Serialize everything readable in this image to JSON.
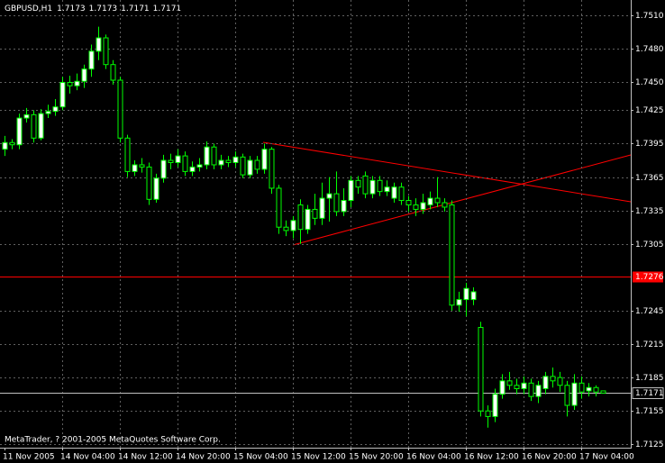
{
  "chart_data": {
    "type": "candlestick",
    "symbol": "GBPUSD,H1",
    "footer": "MetaTrader, ? 2001-2005 MetaQuotes Software Corp.",
    "categories": [
      "11 Nov 2005",
      null,
      null,
      null,
      null,
      null,
      null,
      null,
      "14 Nov 04:00",
      null,
      null,
      null,
      null,
      null,
      null,
      null,
      "14 Nov 12:00",
      null,
      null,
      null,
      null,
      null,
      null,
      null,
      "14 Nov 20:00",
      null,
      null,
      null,
      null,
      null,
      null,
      null,
      "15 Nov 04:00",
      null,
      null,
      null,
      null,
      null,
      null,
      null,
      "15 Nov 12:00",
      null,
      null,
      null,
      null,
      null,
      null,
      null,
      "15 Nov 20:00",
      null,
      null,
      null,
      null,
      null,
      null,
      null,
      "16 Nov 04:00",
      null,
      null,
      null,
      null,
      null,
      null,
      null,
      "16 Nov 12:00",
      null,
      null,
      null,
      null,
      null,
      null,
      null,
      "16 Nov 20:00",
      null,
      null,
      null,
      null,
      null,
      null,
      null,
      "17 Nov 04:00",
      null,
      null,
      null
    ],
    "open": [
      1.739,
      1.7396,
      1.7394,
      1.7418,
      1.7421,
      1.74,
      1.7422,
      1.7424,
      1.7428,
      1.745,
      1.7447,
      1.7451,
      1.7462,
      1.7478,
      1.749,
      1.7466,
      1.7452,
      1.74,
      1.737,
      1.7376,
      1.7374,
      1.7345,
      1.7364,
      1.738,
      1.7378,
      1.7384,
      1.737,
      1.7374,
      1.7376,
      1.7392,
      1.7376,
      1.738,
      1.7378,
      1.7383,
      1.7367,
      1.738,
      1.7372,
      1.739,
      1.7355,
      1.732,
      1.7317,
      1.734,
      1.7318,
      1.7336,
      1.7328,
      1.7346,
      1.735,
      1.7334,
      1.7344,
      1.7362,
      1.7366,
      1.735,
      1.7362,
      1.7352,
      1.7346,
      1.7356,
      1.7344,
      1.734,
      1.7336,
      1.734,
      1.7346,
      1.7342,
      1.734,
      1.725,
      1.7255,
      1.7255,
      1.723,
      1.7155,
      1.715,
      1.717,
      1.7182,
      1.7178,
      1.7175,
      1.718,
      1.7168,
      1.7175,
      1.7186,
      1.7185,
      1.7178,
      1.716,
      1.718,
      1.7173,
      1.7176,
      1.7173
    ],
    "high": [
      1.7402,
      1.7399,
      1.7422,
      1.7427,
      1.7425,
      1.7426,
      1.743,
      1.7435,
      1.7455,
      1.7456,
      1.7458,
      1.7466,
      1.7484,
      1.75,
      1.7493,
      1.747,
      1.7455,
      1.7403,
      1.738,
      1.7382,
      1.7378,
      1.7368,
      1.7385,
      1.7386,
      1.739,
      1.7388,
      1.7379,
      1.7382,
      1.7397,
      1.7395,
      1.7385,
      1.7384,
      1.7388,
      1.7386,
      1.7384,
      1.7384,
      1.7395,
      1.7392,
      1.7358,
      1.7326,
      1.733,
      1.7345,
      1.734,
      1.735,
      1.736,
      1.7365,
      1.737,
      1.7355,
      1.7366,
      1.7366,
      1.737,
      1.7366,
      1.7366,
      1.7362,
      1.736,
      1.736,
      1.7348,
      1.7346,
      1.735,
      1.7352,
      1.7365,
      1.7346,
      1.7344,
      1.7262,
      1.727,
      1.7266,
      1.7235,
      1.716,
      1.7175,
      1.7188,
      1.719,
      1.7184,
      1.7186,
      1.7184,
      1.7182,
      1.719,
      1.7194,
      1.719,
      1.7182,
      1.7188,
      1.7186,
      1.718,
      1.7178,
      1.7173
    ],
    "low": [
      1.7384,
      1.739,
      1.739,
      1.7414,
      1.7396,
      1.7398,
      1.7418,
      1.742,
      1.7425,
      1.744,
      1.7443,
      1.7445,
      1.7455,
      1.747,
      1.7462,
      1.7448,
      1.7396,
      1.7365,
      1.7366,
      1.7369,
      1.734,
      1.7342,
      1.736,
      1.7372,
      1.7374,
      1.7366,
      1.7366,
      1.737,
      1.7372,
      1.7372,
      1.7372,
      1.7374,
      1.7374,
      1.7364,
      1.7364,
      1.7368,
      1.7368,
      1.735,
      1.7314,
      1.7312,
      1.731,
      1.7305,
      1.7314,
      1.7322,
      1.7322,
      1.7325,
      1.733,
      1.733,
      1.7338,
      1.735,
      1.7346,
      1.7346,
      1.7348,
      1.7348,
      1.7342,
      1.734,
      1.7334,
      1.733,
      1.7332,
      1.7336,
      1.7338,
      1.7334,
      1.7245,
      1.7244,
      1.724,
      1.725,
      1.715,
      1.714,
      1.7145,
      1.7166,
      1.7174,
      1.717,
      1.717,
      1.7164,
      1.7162,
      1.717,
      1.7176,
      1.7172,
      1.715,
      1.7156,
      1.7166,
      1.7168,
      1.7168,
      1.7171
    ],
    "close": [
      1.7396,
      1.7394,
      1.7418,
      1.7421,
      1.74,
      1.7422,
      1.7424,
      1.7428,
      1.745,
      1.7447,
      1.7451,
      1.7462,
      1.7478,
      1.749,
      1.7466,
      1.7452,
      1.74,
      1.737,
      1.7376,
      1.7374,
      1.7345,
      1.7364,
      1.738,
      1.7378,
      1.7384,
      1.737,
      1.7374,
      1.7376,
      1.7392,
      1.7376,
      1.738,
      1.7378,
      1.7383,
      1.7367,
      1.738,
      1.7372,
      1.739,
      1.7355,
      1.732,
      1.7317,
      1.7326,
      1.7318,
      1.7336,
      1.7328,
      1.7346,
      1.735,
      1.7334,
      1.7344,
      1.7362,
      1.7356,
      1.735,
      1.7362,
      1.7352,
      1.7356,
      1.7356,
      1.7344,
      1.734,
      1.7336,
      1.7342,
      1.7346,
      1.7342,
      1.7338,
      1.725,
      1.7255,
      1.7265,
      1.7262,
      1.7155,
      1.715,
      1.717,
      1.7182,
      1.7178,
      1.7175,
      1.718,
      1.7168,
      1.7178,
      1.7186,
      1.7182,
      1.7178,
      1.716,
      1.718,
      1.7172,
      1.7176,
      1.7172,
      1.7171
    ],
    "up_color": "#ffffff",
    "down_color": "#000000",
    "wick_color": "#00ff00",
    "ylim": [
      1.7122,
      1.7524
    ],
    "yticks": [
      {
        "value": 1.751,
        "label": "1.7510"
      },
      {
        "value": 1.748,
        "label": "1.7480"
      },
      {
        "value": 1.745,
        "label": "1.7450"
      },
      1.7425,
      1.7395,
      1.7365,
      1.7335,
      1.7305,
      1.7245,
      1.7215,
      1.7185,
      1.7155,
      1.7125
    ],
    "grid": true,
    "hline": {
      "value": 1.7276,
      "color": "#ff0000"
    }
  }
}
